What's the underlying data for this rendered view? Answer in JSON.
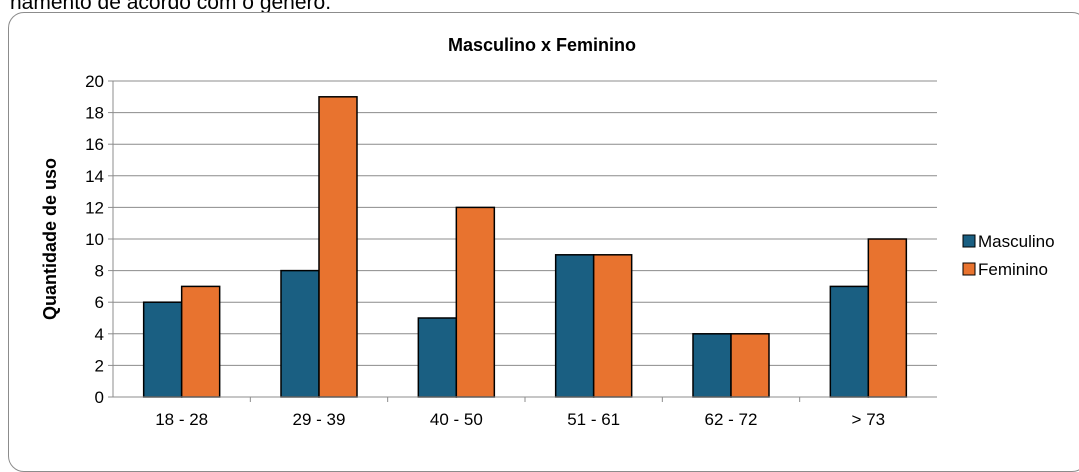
{
  "caption": "namento de acordo com o gênero.",
  "chart_data": {
    "type": "bar",
    "title": "Masculino x Feminino",
    "xlabel": "",
    "ylabel": "Quantidade de uso",
    "categories": [
      "18 - 28",
      "29 - 39",
      "40 - 50",
      "51 - 61",
      "62 - 72",
      "> 73"
    ],
    "series": [
      {
        "name": "Masculino",
        "values": [
          6,
          8,
          5,
          9,
          4,
          7
        ],
        "color": "#1a5f82"
      },
      {
        "name": "Feminino",
        "values": [
          7,
          19,
          12,
          9,
          4,
          10
        ],
        "color": "#e8732f"
      }
    ],
    "ylim": [
      0,
      20
    ],
    "yticks": [
      "0",
      "2",
      "4",
      "6",
      "8",
      "10",
      "12",
      "14",
      "16",
      "18",
      "20"
    ],
    "grid": true,
    "legend_position": "right"
  }
}
